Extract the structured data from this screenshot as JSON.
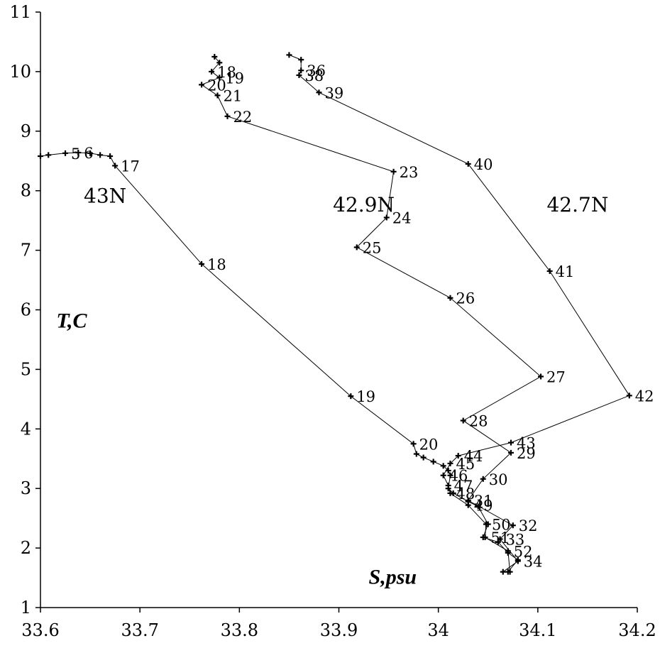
{
  "chart_data": {
    "type": "line",
    "x_axis_label": "S,psu",
    "y_axis_label": "T,C",
    "xlim": [
      33.6,
      34.2
    ],
    "ylim": [
      1,
      11
    ],
    "x_ticks": [
      "33.6",
      "33.7",
      "33.8",
      "33.9",
      "34",
      "34.1",
      "34.2"
    ],
    "y_ticks": [
      "1",
      "2",
      "3",
      "4",
      "5",
      "6",
      "7",
      "8",
      "9",
      "10",
      "11"
    ],
    "grid": false,
    "series": [
      {
        "name": "43N",
        "points": [
          {
            "x": 33.6,
            "y": 8.58,
            "label": ""
          },
          {
            "x": 33.608,
            "y": 8.6,
            "label": ""
          },
          {
            "x": 33.625,
            "y": 8.63,
            "label": "5"
          },
          {
            "x": 33.638,
            "y": 8.64,
            "label": "6"
          },
          {
            "x": 33.65,
            "y": 8.63,
            "label": ""
          },
          {
            "x": 33.66,
            "y": 8.6,
            "label": ""
          },
          {
            "x": 33.67,
            "y": 8.58,
            "label": ""
          },
          {
            "x": 33.675,
            "y": 8.42,
            "label": "17"
          },
          {
            "x": 33.762,
            "y": 6.77,
            "label": "18"
          },
          {
            "x": 33.912,
            "y": 4.55,
            "label": "19"
          },
          {
            "x": 33.975,
            "y": 3.75,
            "label": "20"
          },
          {
            "x": 33.978,
            "y": 3.58,
            "label": ""
          },
          {
            "x": 33.985,
            "y": 3.52,
            "label": ""
          },
          {
            "x": 33.995,
            "y": 3.45,
            "label": ""
          },
          {
            "x": 34.005,
            "y": 3.38,
            "label": ""
          },
          {
            "x": 34.01,
            "y": 3.3,
            "label": ""
          },
          {
            "x": 34.012,
            "y": 3.22,
            "label": ""
          },
          {
            "x": 34.01,
            "y": 3.0,
            "label": ""
          },
          {
            "x": 34.015,
            "y": 2.92,
            "label": ""
          },
          {
            "x": 34.03,
            "y": 2.78,
            "label": ""
          },
          {
            "x": 34.04,
            "y": 2.7,
            "label": ""
          },
          {
            "x": 34.05,
            "y": 2.4,
            "label": ""
          },
          {
            "x": 34.045,
            "y": 2.18,
            "label": ""
          },
          {
            "x": 34.06,
            "y": 2.1,
            "label": ""
          },
          {
            "x": 34.07,
            "y": 1.92,
            "label": ""
          },
          {
            "x": 34.08,
            "y": 1.8,
            "label": ""
          },
          {
            "x": 34.07,
            "y": 1.6,
            "label": ""
          }
        ]
      },
      {
        "name": "42.9N",
        "points": [
          {
            "x": 33.775,
            "y": 10.25,
            "label": ""
          },
          {
            "x": 33.78,
            "y": 10.15,
            "label": ""
          },
          {
            "x": 33.772,
            "y": 10.0,
            "label": "18"
          },
          {
            "x": 33.78,
            "y": 9.9,
            "label": "19"
          },
          {
            "x": 33.762,
            "y": 9.78,
            "label": "20"
          },
          {
            "x": 33.778,
            "y": 9.6,
            "label": "21"
          },
          {
            "x": 33.788,
            "y": 9.25,
            "label": "22"
          },
          {
            "x": 33.955,
            "y": 8.32,
            "label": "23"
          },
          {
            "x": 33.948,
            "y": 7.55,
            "label": "24"
          },
          {
            "x": 33.918,
            "y": 7.05,
            "label": "25"
          },
          {
            "x": 34.012,
            "y": 6.2,
            "label": "26"
          },
          {
            "x": 34.103,
            "y": 4.88,
            "label": "27"
          },
          {
            "x": 34.025,
            "y": 4.14,
            "label": "28"
          },
          {
            "x": 34.073,
            "y": 3.6,
            "label": "29"
          },
          {
            "x": 34.045,
            "y": 3.16,
            "label": "30"
          },
          {
            "x": 34.03,
            "y": 2.8,
            "label": "31"
          },
          {
            "x": 34.075,
            "y": 2.38,
            "label": "32"
          },
          {
            "x": 34.062,
            "y": 2.15,
            "label": "33"
          },
          {
            "x": 34.08,
            "y": 1.78,
            "label": "34"
          },
          {
            "x": 34.065,
            "y": 1.6,
            "label": ""
          }
        ]
      },
      {
        "name": "42.7N",
        "points": [
          {
            "x": 33.85,
            "y": 10.28,
            "label": ""
          },
          {
            "x": 33.862,
            "y": 10.2,
            "label": ""
          },
          {
            "x": 33.862,
            "y": 10.02,
            "label": "36"
          },
          {
            "x": 33.86,
            "y": 9.94,
            "label": "38"
          },
          {
            "x": 33.88,
            "y": 9.65,
            "label": "39"
          },
          {
            "x": 34.03,
            "y": 8.45,
            "label": "40"
          },
          {
            "x": 34.112,
            "y": 6.65,
            "label": "41"
          },
          {
            "x": 34.192,
            "y": 4.56,
            "label": "42"
          },
          {
            "x": 34.073,
            "y": 3.77,
            "label": "43"
          },
          {
            "x": 34.02,
            "y": 3.55,
            "label": "44"
          },
          {
            "x": 34.012,
            "y": 3.42,
            "label": "45"
          },
          {
            "x": 34.005,
            "y": 3.22,
            "label": "46"
          },
          {
            "x": 34.01,
            "y": 3.05,
            "label": "47"
          },
          {
            "x": 34.012,
            "y": 2.92,
            "label": "48"
          },
          {
            "x": 34.03,
            "y": 2.72,
            "label": "49"
          },
          {
            "x": 34.048,
            "y": 2.4,
            "label": "50"
          },
          {
            "x": 34.047,
            "y": 2.18,
            "label": "51"
          },
          {
            "x": 34.07,
            "y": 1.95,
            "label": "52"
          },
          {
            "x": 34.072,
            "y": 1.6,
            "label": ""
          }
        ]
      }
    ],
    "series_labels": [
      {
        "text": "43N",
        "x": 33.665,
        "y": 7.8
      },
      {
        "text": "42.9N",
        "x": 33.925,
        "y": 7.65
      },
      {
        "text": "42.7N",
        "x": 34.14,
        "y": 7.65
      }
    ],
    "axis_title_positions": {
      "y_title": {
        "x": 33.616,
        "y": 5.7
      },
      "x_title": {
        "x": 33.93,
        "y": 1.4
      }
    }
  }
}
